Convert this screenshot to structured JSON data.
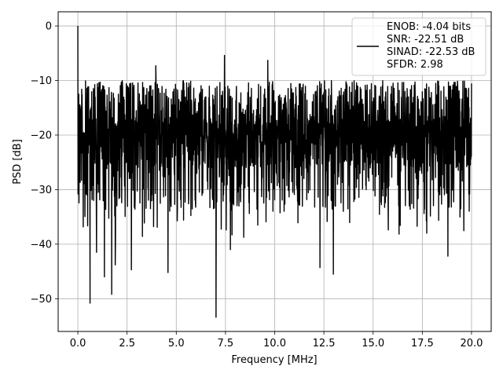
{
  "chart_data": {
    "type": "line",
    "xlabel": "Frequency [MHz]",
    "ylabel": "PSD [dB]",
    "xlim": [
      -1.0,
      21.0
    ],
    "ylim": [
      -56.0,
      2.6
    ],
    "x_ticks": [
      0.0,
      2.5,
      5.0,
      7.5,
      10.0,
      12.5,
      15.0,
      17.5,
      20.0
    ],
    "x_tick_labels": [
      "0.0",
      "2.5",
      "5.0",
      "7.5",
      "10.0",
      "12.5",
      "15.0",
      "17.5",
      "20.0"
    ],
    "y_ticks": [
      0,
      -10,
      -20,
      -30,
      -40,
      -50
    ],
    "y_tick_labels": [
      "0",
      "−10",
      "−20",
      "−30",
      "−40",
      "−50"
    ],
    "grid": true,
    "legend_position": "top-right",
    "series": [
      {
        "name": "ENOB: -4.04 bits\nSNR: -22.51 dB\nSINAD: -22.53 dB\nSFDR: 2.98",
        "color": "#000000",
        "start_x": 0.0,
        "end_x": 20.0,
        "peak": {
          "x": 0.0,
          "y": 0.0
        },
        "typical_range": [
          -32.0,
          -10.0
        ],
        "deep_nulls": [
          {
            "x": 0.62,
            "y": -50.8
          },
          {
            "x": 0.95,
            "y": -41.5
          },
          {
            "x": 1.35,
            "y": -46.0
          },
          {
            "x": 1.72,
            "y": -49.2
          },
          {
            "x": 1.9,
            "y": -43.8
          },
          {
            "x": 2.72,
            "y": -44.7
          },
          {
            "x": 4.58,
            "y": -45.2
          },
          {
            "x": 7.02,
            "y": -53.4
          },
          {
            "x": 7.75,
            "y": -41.0
          },
          {
            "x": 12.3,
            "y": -44.3
          },
          {
            "x": 12.98,
            "y": -45.5
          },
          {
            "x": 18.8,
            "y": -42.2
          }
        ],
        "high_peaks": [
          {
            "x": 7.45,
            "y": -5.4
          },
          {
            "x": 9.65,
            "y": -6.3
          },
          {
            "x": 3.96,
            "y": -7.3
          }
        ]
      }
    ]
  }
}
